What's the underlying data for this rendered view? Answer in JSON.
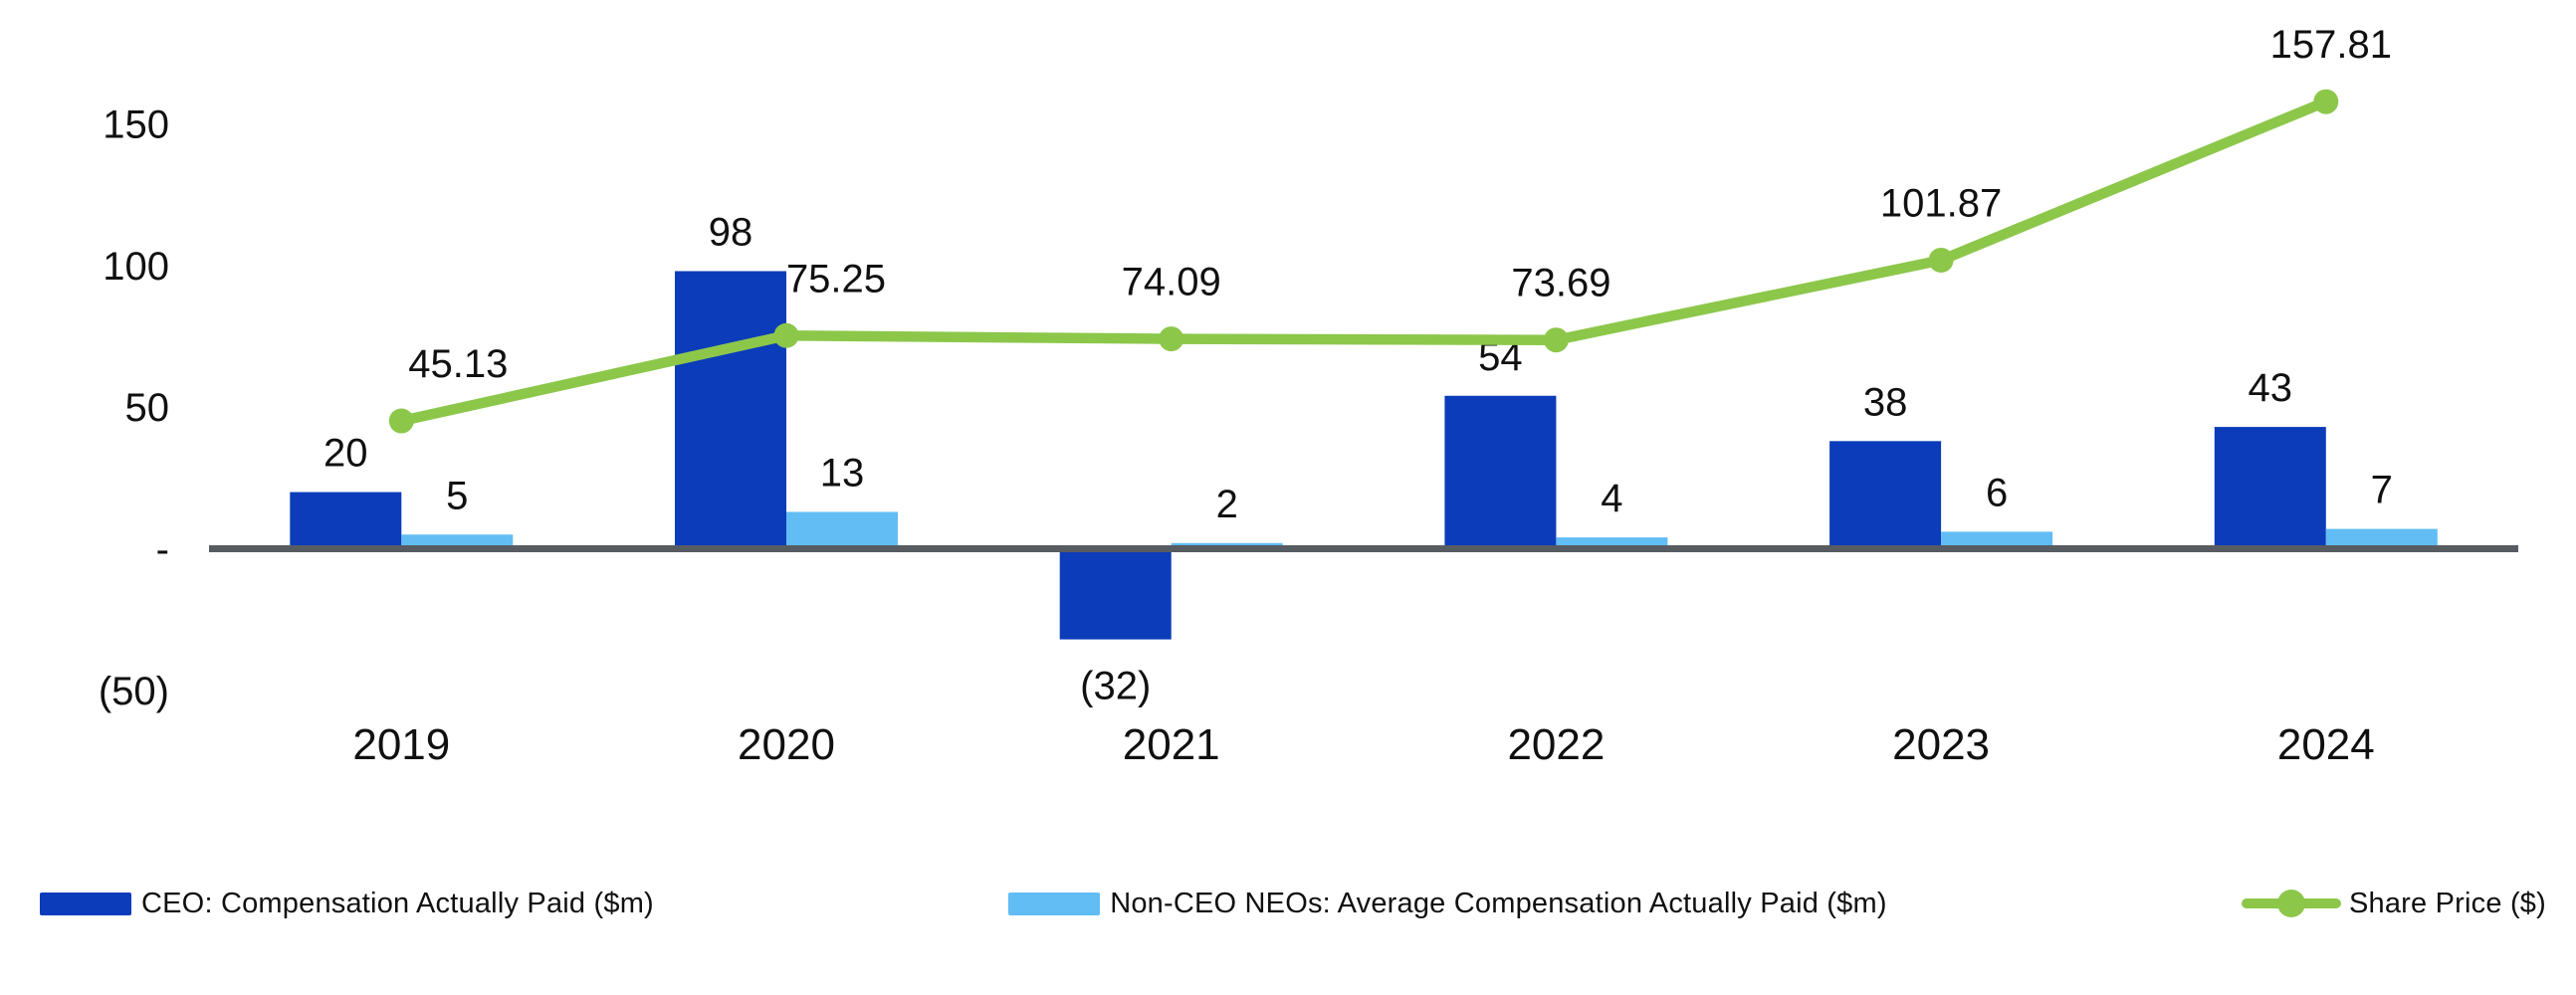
{
  "page": {
    "background": "#ffffff",
    "description": "Pay versus performance combo chart: CEO and Non-CEO NEO compensation actually paid (bars) with share price (line), 2019-2024"
  },
  "colors": {
    "ceo_bar": "#0c3cba",
    "neo_bar": "#61bdf4",
    "share_line": "#8cc74a",
    "axis_line": "#575c62",
    "text": "#101010"
  },
  "chart_data": {
    "type": "combo (bar + line)",
    "title": "",
    "xlabel": "",
    "ylabel": "",
    "grid": false,
    "legend_position": "bottom",
    "categories": [
      "2019",
      "2020",
      "2021",
      "2022",
      "2023",
      "2024"
    ],
    "series": [
      {
        "name": "CEO: Compensation Actually Paid ($m)",
        "type": "bar",
        "color": "#0c3cba",
        "values": [
          20,
          98,
          -32,
          54,
          38,
          43
        ],
        "labels": [
          "20",
          "98",
          "(32)",
          "54",
          "38",
          "43"
        ]
      },
      {
        "name": "Non-CEO NEOs: Average Compensation Actually Paid ($m)",
        "type": "bar",
        "color": "#61bdf4",
        "values": [
          5,
          13,
          2,
          4,
          6,
          7
        ],
        "labels": [
          "5",
          "13",
          "2",
          "4",
          "6",
          "7"
        ]
      },
      {
        "name": "Share Price ($)",
        "type": "line",
        "color": "#8cc74a",
        "values": [
          45.13,
          75.25,
          74.09,
          73.69,
          101.87,
          157.81
        ],
        "labels": [
          "45.13",
          "75.25",
          "74.09",
          "73.69",
          "101.87",
          "157.81"
        ]
      }
    ],
    "y_axis": {
      "range": [
        -50,
        175
      ],
      "ticks": [
        {
          "label": "150",
          "value": 150
        },
        {
          "label": "100",
          "value": 100
        },
        {
          "label": "50",
          "value": 50
        },
        {
          "label": "-",
          "value": 0
        },
        {
          "label": "(50)",
          "value": -50
        }
      ]
    }
  }
}
